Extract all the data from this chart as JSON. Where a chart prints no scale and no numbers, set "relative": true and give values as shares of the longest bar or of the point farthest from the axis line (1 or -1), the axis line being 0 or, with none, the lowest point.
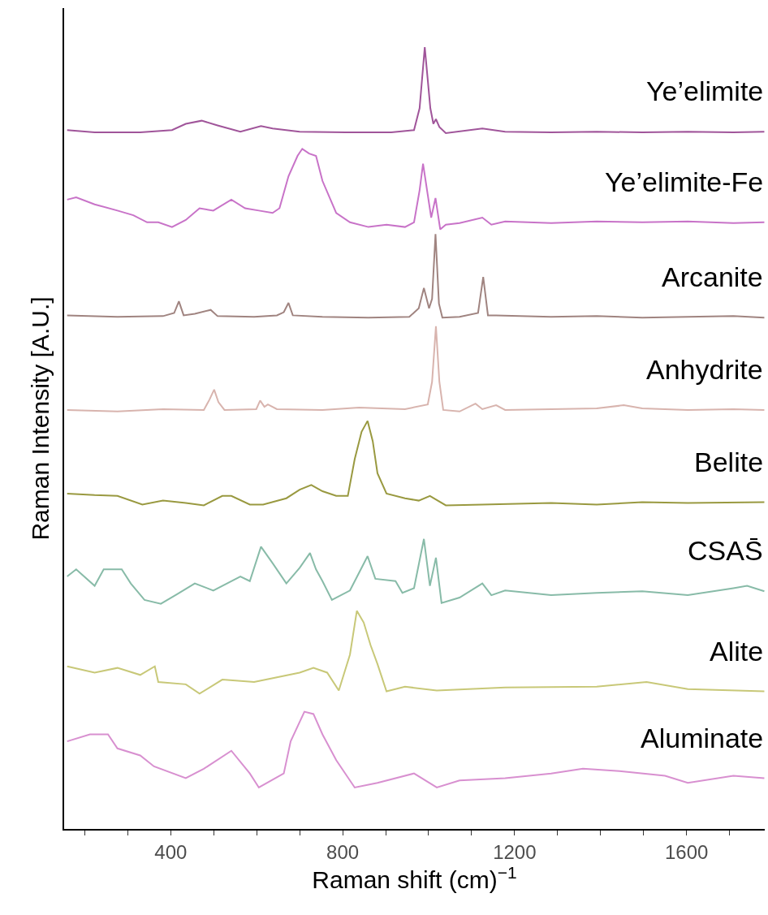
{
  "chart_data": {
    "type": "line",
    "relative": true,
    "xlabel": "Raman shift (cm)$^{−1}$",
    "ylabel": "Raman Intensity [A.U.]",
    "xlim": [
      152,
      1782
    ],
    "xticks": [
      {
        "value": 200,
        "label": null
      },
      {
        "value": 300,
        "label": null
      },
      400,
      {
        "value": 500,
        "label": null
      },
      {
        "value": 600,
        "label": null
      },
      {
        "value": 700,
        "label": null
      },
      800,
      {
        "value": 900,
        "label": null
      },
      {
        "value": 1000,
        "label": null
      },
      {
        "value": 1100,
        "label": null
      },
      1200,
      {
        "value": 1300,
        "label": null
      },
      {
        "value": 1400,
        "label": null
      },
      {
        "value": 1500,
        "label": null
      },
      1600,
      {
        "value": 1700,
        "label": null
      }
    ],
    "legend": false,
    "marker": "none",
    "line_style": "solid",
    "tick_labels": "x",
    "series": [
      {
        "name": "Ye’elimite",
        "color": "#a0559a",
        "x": [
          159,
          223,
          329,
          403,
          435,
          472,
          509,
          562,
          610,
          637,
          700,
          807,
          913,
          966,
          979,
          991,
          1004,
          1011,
          1017,
          1025,
          1040,
          1125,
          1178,
          1285,
          1391,
          1497,
          1603,
          1709,
          1781
        ],
        "values": [
          0.894,
          0.891,
          0.891,
          0.894,
          0.902,
          0.906,
          0.9,
          0.892,
          0.899,
          0.896,
          0.892,
          0.891,
          0.891,
          0.894,
          0.922,
          1.0,
          0.922,
          0.902,
          0.908,
          0.898,
          0.89,
          0.896,
          0.892,
          0.891,
          0.892,
          0.891,
          0.892,
          0.891,
          0.892
        ]
      },
      {
        "name": "Ye’elimite-Fe",
        "color": "#c873c8",
        "x": [
          159,
          180,
          223,
          276,
          313,
          345,
          371,
          403,
          435,
          467,
          499,
          541,
          573,
          605,
          637,
          653,
          674,
          695,
          706,
          722,
          738,
          753,
          785,
          817,
          860,
          902,
          945,
          966,
          979,
          987,
          998,
          1006,
          1016,
          1027,
          1040,
          1072,
          1125,
          1146,
          1178,
          1285,
          1391,
          1497,
          1603,
          1709,
          1781
        ],
        "values": [
          0.805,
          0.808,
          0.799,
          0.791,
          0.785,
          0.776,
          0.776,
          0.77,
          0.779,
          0.794,
          0.791,
          0.805,
          0.794,
          0.791,
          0.788,
          0.794,
          0.835,
          0.861,
          0.87,
          0.864,
          0.861,
          0.829,
          0.788,
          0.776,
          0.77,
          0.773,
          0.77,
          0.776,
          0.817,
          0.851,
          0.811,
          0.782,
          0.807,
          0.767,
          0.773,
          0.775,
          0.782,
          0.773,
          0.777,
          0.775,
          0.777,
          0.776,
          0.777,
          0.775,
          0.776
        ]
      },
      {
        "name": "Arcanite",
        "color": "#a08480",
        "x": [
          159,
          276,
          382,
          408,
          419,
          430,
          456,
          493,
          509,
          594,
          647,
          663,
          674,
          684,
          753,
          860,
          955,
          977,
          989,
          1001,
          1008,
          1016,
          1024,
          1032,
          1072,
          1115,
          1127,
          1138,
          1157,
          1285,
          1391,
          1497,
          1603,
          1709,
          1781
        ],
        "values": [
          0.657,
          0.655,
          0.656,
          0.66,
          0.675,
          0.657,
          0.659,
          0.664,
          0.656,
          0.655,
          0.657,
          0.661,
          0.673,
          0.657,
          0.655,
          0.654,
          0.655,
          0.666,
          0.692,
          0.666,
          0.678,
          0.761,
          0.672,
          0.654,
          0.655,
          0.66,
          0.706,
          0.657,
          0.657,
          0.655,
          0.656,
          0.654,
          0.655,
          0.656,
          0.654
        ]
      },
      {
        "name": "Anhydrite",
        "color": "#d8b4ae",
        "x": [
          159,
          276,
          382,
          477,
          490,
          501,
          511,
          525,
          599,
          608,
          618,
          626,
          647,
          753,
          838,
          945,
          998,
          1008,
          1017,
          1025,
          1034,
          1072,
          1109,
          1125,
          1157,
          1178,
          1285,
          1391,
          1454,
          1497,
          1603,
          1709,
          1781
        ],
        "values": [
          0.536,
          0.534,
          0.537,
          0.536,
          0.549,
          0.562,
          0.546,
          0.536,
          0.537,
          0.548,
          0.54,
          0.543,
          0.537,
          0.536,
          0.539,
          0.537,
          0.543,
          0.572,
          0.643,
          0.572,
          0.536,
          0.534,
          0.544,
          0.537,
          0.542,
          0.536,
          0.537,
          0.538,
          0.542,
          0.538,
          0.536,
          0.537,
          0.536
        ]
      },
      {
        "name": "Belite",
        "color": "#999940",
        "x": [
          159,
          223,
          276,
          334,
          382,
          435,
          477,
          520,
          541,
          584,
          615,
          669,
          700,
          727,
          753,
          785,
          812,
          828,
          844,
          858,
          870,
          881,
          902,
          945,
          977,
          1003,
          1040,
          1125,
          1285,
          1391,
          1497,
          1603,
          1781
        ],
        "values": [
          0.429,
          0.427,
          0.426,
          0.415,
          0.42,
          0.417,
          0.414,
          0.426,
          0.426,
          0.415,
          0.415,
          0.423,
          0.434,
          0.44,
          0.432,
          0.426,
          0.426,
          0.473,
          0.508,
          0.522,
          0.496,
          0.455,
          0.429,
          0.423,
          0.42,
          0.426,
          0.414,
          0.415,
          0.417,
          0.415,
          0.418,
          0.417,
          0.418
        ]
      },
      {
        "name": "CSAS̄",
        "color": "#88bba8",
        "x": [
          159,
          180,
          223,
          244,
          286,
          307,
          339,
          377,
          414,
          456,
          499,
          541,
          562,
          584,
          610,
          637,
          669,
          700,
          724,
          738,
          753,
          775,
          817,
          858,
          876,
          923,
          939,
          966,
          989,
          1003,
          1017,
          1030,
          1072,
          1125,
          1146,
          1178,
          1285,
          1391,
          1497,
          1603,
          1709,
          1741,
          1781
        ],
        "values": [
          0.323,
          0.332,
          0.311,
          0.332,
          0.332,
          0.314,
          0.293,
          0.288,
          0.3,
          0.314,
          0.305,
          0.317,
          0.323,
          0.317,
          0.361,
          0.34,
          0.314,
          0.334,
          0.353,
          0.332,
          0.317,
          0.293,
          0.305,
          0.349,
          0.32,
          0.317,
          0.302,
          0.308,
          0.371,
          0.311,
          0.347,
          0.289,
          0.296,
          0.314,
          0.299,
          0.305,
          0.299,
          0.302,
          0.304,
          0.299,
          0.308,
          0.311,
          0.304
        ]
      },
      {
        "name": "Alite",
        "color": "#c8c878",
        "x": [
          159,
          223,
          276,
          329,
          363,
          371,
          435,
          467,
          520,
          594,
          647,
          700,
          732,
          764,
          791,
          817,
          833,
          849,
          865,
          881,
          902,
          945,
          1019,
          1178,
          1391,
          1507,
          1603,
          1781
        ],
        "values": [
          0.208,
          0.2,
          0.206,
          0.197,
          0.208,
          0.188,
          0.185,
          0.173,
          0.191,
          0.188,
          0.194,
          0.2,
          0.206,
          0.2,
          0.177,
          0.223,
          0.279,
          0.264,
          0.235,
          0.211,
          0.176,
          0.182,
          0.177,
          0.181,
          0.182,
          0.188,
          0.179,
          0.176
        ]
      },
      {
        "name": "Aluminate",
        "color": "#d890d0",
        "x": [
          159,
          212,
          254,
          276,
          329,
          361,
          435,
          477,
          541,
          584,
          605,
          663,
          679,
          711,
          732,
          753,
          785,
          828,
          881,
          966,
          1019,
          1072,
          1178,
          1285,
          1359,
          1444,
          1550,
          1603,
          1709,
          1781
        ],
        "values": [
          0.112,
          0.121,
          0.121,
          0.103,
          0.094,
          0.08,
          0.065,
          0.077,
          0.1,
          0.071,
          0.053,
          0.071,
          0.112,
          0.15,
          0.147,
          0.121,
          0.088,
          0.053,
          0.059,
          0.071,
          0.053,
          0.062,
          0.065,
          0.071,
          0.077,
          0.074,
          0.068,
          0.059,
          0.068,
          0.065
        ]
      }
    ]
  }
}
